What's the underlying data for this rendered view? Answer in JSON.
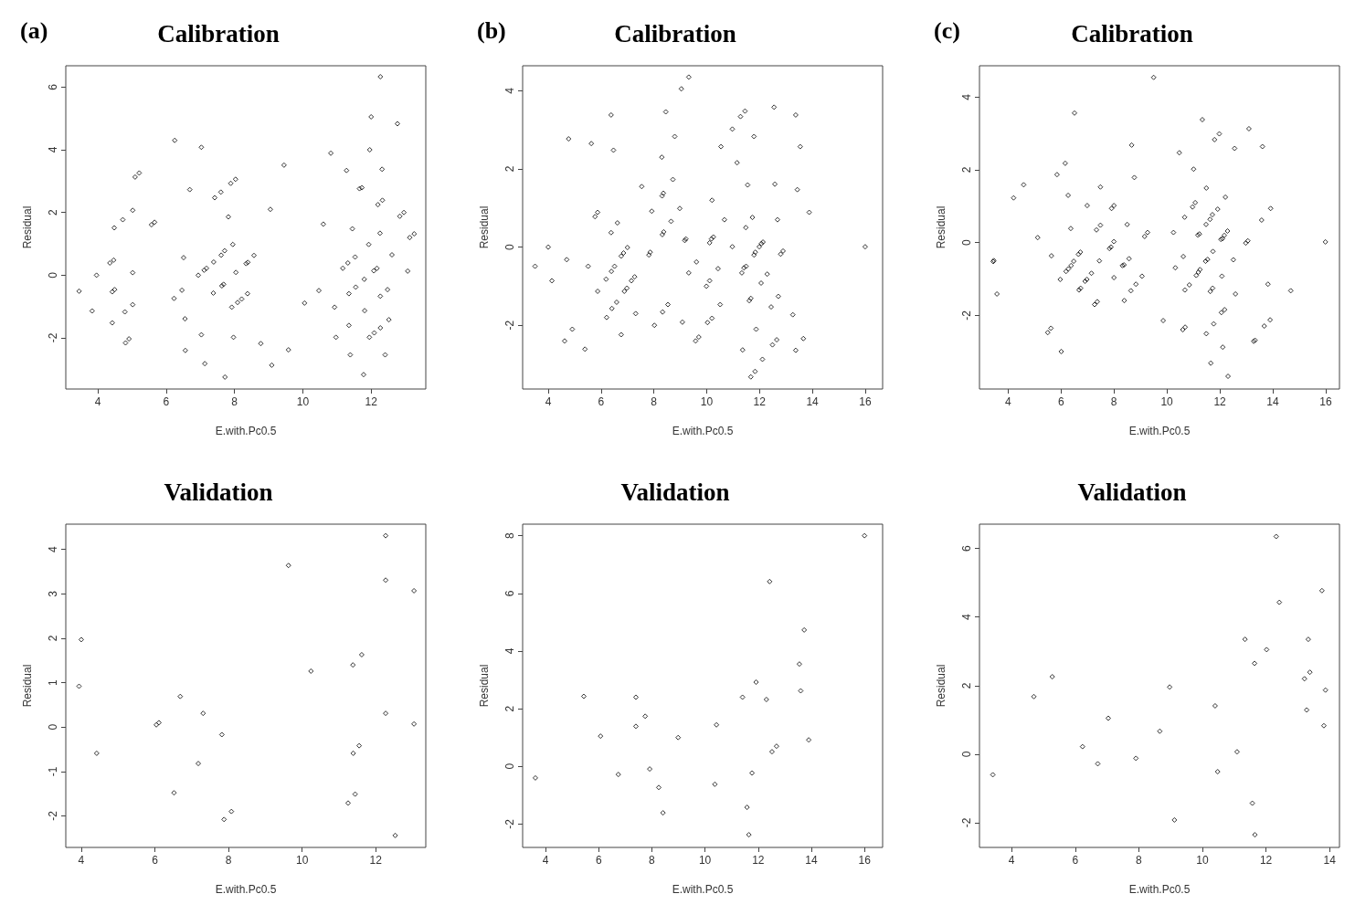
{
  "chart_data": [
    {
      "type": "scatter",
      "title": "Calibration",
      "annotations": [
        "(a)"
      ],
      "xlabel": "E.with.Pc0.5",
      "ylabel": "Residual",
      "marker": "diamond",
      "xlim": [
        3.06,
        13.6
      ],
      "ylim": [
        -3.63,
        6.68
      ],
      "xticks": [
        4,
        6,
        8,
        10,
        12
      ],
      "yticks": [
        -2,
        0,
        2,
        4,
        6
      ],
      "series": [
        {
          "color": "#000000",
          "x": [
            3.45,
            3.83,
            3.96,
            4.35,
            4.46,
            4.48,
            4.42,
            4.49,
            4.42,
            4.73,
            4.79,
            4.81,
            4.91,
            5.02,
            5.02,
            5.02,
            5.09,
            5.21,
            5.57,
            5.66,
            6.25,
            6.23,
            6.51,
            6.46,
            6.55,
            6.56,
            6.69,
            6.94,
            7.11,
            7.18,
            7.03,
            7.03,
            7.13,
            7.39,
            7.38,
            7.42,
            7.6,
            7.61,
            7.71,
            7.63,
            7.68,
            7.72,
            7.82,
            7.89,
            8.03,
            7.95,
            7.92,
            7.97,
            8.04,
            8.09,
            8.21,
            8.38,
            8.34,
            8.39,
            8.57,
            8.77,
            9.05,
            9.09,
            9.45,
            9.58,
            10.05,
            10.47,
            10.6,
            10.82,
            10.93,
            10.97,
            11.17,
            11.28,
            11.32,
            11.35,
            11.35,
            11.39,
            11.45,
            11.53,
            11.55,
            11.66,
            11.73,
            11.8,
            11.81,
            11.78,
            11.93,
            11.96,
            11.95,
            12.09,
            12.0,
            12.08,
            12.17,
            12.2,
            12.33,
            12.26,
            12.27,
            12.27,
            12.27,
            12.32,
            12.41,
            12.48,
            12.52,
            12.61,
            12.77,
            12.84,
            12.96,
            13.07,
            13.13,
            13.26
          ],
          "values": [
            -0.51,
            -1.14,
            0.0,
            0.39,
            0.48,
            1.51,
            -0.53,
            -0.46,
            -1.52,
            1.77,
            -1.17,
            -2.16,
            -2.03,
            2.07,
            0.08,
            -0.94,
            3.13,
            3.26,
            1.61,
            1.69,
            4.3,
            -0.74,
            0.56,
            -0.48,
            -1.39,
            -2.4,
            2.73,
            0.0,
            0.16,
            0.22,
            4.08,
            -1.9,
            -2.82,
            0.42,
            -0.57,
            2.47,
            2.65,
            0.64,
            0.78,
            -0.34,
            -0.29,
            -3.25,
            1.86,
            2.93,
            3.06,
            0.98,
            -1.02,
            -1.98,
            0.09,
            -0.87,
            -0.76,
            -0.59,
            0.37,
            0.41,
            0.63,
            -2.18,
            2.1,
            -2.87,
            3.51,
            -2.38,
            -0.89,
            -0.49,
            1.63,
            3.89,
            -1.02,
            -1.98,
            0.22,
            3.34,
            0.39,
            -0.59,
            -1.6,
            -2.54,
            1.48,
            0.58,
            -0.38,
            2.76,
            2.79,
            -0.13,
            -1.13,
            -3.17,
            0.98,
            4.0,
            -1.98,
            -1.84,
            5.05,
            0.14,
            0.22,
            2.25,
            2.39,
            1.34,
            6.33,
            -0.67,
            -1.68,
            3.38,
            -2.54,
            -0.46,
            -1.42,
            0.65,
            4.83,
            1.88,
            2.0,
            0.13,
            1.2,
            1.32
          ]
        }
      ]
    },
    {
      "type": "scatter",
      "title": "Calibration",
      "annotations": [
        "(b)"
      ],
      "xlabel": "E.with.Pc0.5",
      "ylabel": "Residual",
      "marker": "diamond",
      "xlim": [
        3.03,
        16.66
      ],
      "ylim": [
        -3.63,
        4.64
      ],
      "xticks": [
        4,
        6,
        8,
        10,
        12,
        14,
        16
      ],
      "yticks": [
        -2,
        0,
        2,
        4
      ],
      "series": [
        {
          "color": "#000000",
          "x": [
            3.5,
            4.0,
            4.14,
            4.62,
            4.7,
            4.77,
            4.91,
            5.39,
            5.51,
            5.63,
            5.77,
            5.87,
            5.87,
            6.19,
            6.21,
            6.38,
            6.38,
            6.39,
            6.41,
            6.47,
            6.51,
            6.59,
            6.62,
            6.76,
            6.85,
            6.76,
            6.88,
            6.98,
            7.0,
            7.15,
            7.27,
            7.31,
            7.54,
            7.81,
            7.86,
            7.92,
            8.02,
            8.3,
            8.31,
            8.36,
            8.32,
            8.37,
            8.33,
            8.45,
            8.53,
            8.65,
            8.72,
            8.79,
            8.98,
            9.04,
            9.08,
            9.17,
            9.21,
            9.32,
            9.32,
            9.58,
            9.7,
            9.61,
            9.99,
            10.03,
            10.11,
            10.11,
            10.2,
            10.2,
            10.18,
            10.25,
            10.43,
            10.51,
            10.54,
            10.67,
            10.97,
            10.97,
            11.15,
            11.28,
            11.45,
            11.33,
            11.41,
            11.49,
            11.36,
            11.48,
            11.55,
            11.61,
            11.67,
            11.67,
            11.83,
            11.73,
            11.79,
            11.79,
            11.84,
            11.87,
            11.99,
            12.07,
            12.13,
            12.06,
            12.11,
            12.29,
            12.44,
            12.49,
            12.55,
            12.58,
            12.65,
            12.68,
            12.71,
            12.8,
            12.89,
            13.26,
            13.37,
            13.37,
            13.43,
            13.54,
            13.66,
            13.88,
            16.0
          ],
          "values": [
            -0.49,
            0.0,
            -0.86,
            -2.4,
            -0.32,
            2.77,
            -2.1,
            -2.61,
            -0.49,
            2.65,
            0.78,
            0.89,
            -1.13,
            -0.82,
            -1.8,
            3.38,
            0.37,
            -0.62,
            -1.57,
            2.48,
            -0.49,
            -1.41,
            0.62,
            -0.23,
            -0.15,
            -2.24,
            -1.13,
            -1.05,
            -0.01,
            -0.86,
            -0.76,
            -1.7,
            1.55,
            -0.2,
            -0.13,
            0.92,
            -2.0,
            2.3,
            1.31,
            1.38,
            0.32,
            0.39,
            -1.66,
            3.46,
            -1.47,
            0.66,
            1.73,
            2.83,
            0.99,
            4.05,
            -1.92,
            0.17,
            0.21,
            4.35,
            -0.66,
            -2.4,
            -2.3,
            -0.38,
            -1.0,
            -1.93,
            -0.86,
            0.11,
            1.2,
            -1.82,
            0.21,
            0.26,
            -0.55,
            -1.47,
            2.57,
            0.7,
            0.01,
            3.02,
            2.16,
            3.34,
            3.48,
            -0.66,
            -0.53,
            -0.49,
            -2.63,
            0.5,
            1.59,
            -1.37,
            -1.31,
            -3.32,
            -3.18,
            0.76,
            2.83,
            -0.2,
            -0.13,
            -2.1,
            0.01,
            0.09,
            0.13,
            -0.92,
            -2.87,
            -0.69,
            -1.53,
            -2.5,
            3.58,
            1.61,
            -2.37,
            0.7,
            -1.26,
            -0.18,
            -0.1,
            -1.73,
            3.38,
            -2.64,
            1.47,
            2.57,
            -2.34,
            0.89,
            0.01
          ]
        }
      ]
    },
    {
      "type": "scatter",
      "title": "Calibration",
      "annotations": [
        "(c)"
      ],
      "xlabel": "E.with.Pc0.5",
      "ylabel": "Residual",
      "marker": "diamond",
      "xlim": [
        2.92,
        16.52
      ],
      "ylim": [
        -4.02,
        4.86
      ],
      "xticks": [
        4,
        6,
        8,
        10,
        12,
        14,
        16
      ],
      "yticks": [
        -2,
        0,
        2,
        4
      ],
      "series": [
        {
          "color": "#000000",
          "x": [
            3.44,
            3.46,
            3.58,
            4.21,
            4.59,
            5.12,
            5.5,
            5.62,
            5.64,
            5.85,
            5.97,
            6.01,
            6.16,
            6.27,
            6.19,
            6.28,
            6.38,
            6.48,
            6.37,
            6.51,
            6.68,
            6.74,
            6.66,
            6.73,
            6.91,
            6.98,
            6.99,
            7.15,
            7.27,
            7.37,
            7.34,
            7.45,
            7.49,
            7.49,
            7.83,
            7.89,
            7.91,
            8.0,
            8.0,
            8.0,
            8.32,
            8.38,
            8.39,
            8.5,
            8.57,
            8.64,
            8.67,
            8.77,
            8.83,
            9.06,
            9.16,
            9.27,
            9.5,
            9.86,
            10.25,
            10.32,
            10.47,
            10.62,
            10.6,
            10.69,
            10.67,
            10.68,
            10.85,
            10.97,
            11.07,
            11.01,
            11.11,
            11.19,
            11.25,
            11.17,
            11.23,
            11.34,
            11.46,
            11.54,
            11.48,
            11.49,
            11.49,
            11.63,
            11.72,
            11.66,
            11.64,
            11.73,
            11.74,
            11.77,
            11.8,
            11.98,
            11.92,
            12.04,
            12.1,
            12.08,
            12.06,
            12.18,
            12.11,
            12.17,
            12.29,
            12.21,
            12.31,
            12.51,
            12.56,
            12.59,
            12.98,
            13.06,
            13.1,
            13.28,
            13.33,
            13.58,
            13.61,
            13.68,
            13.82,
            13.9,
            13.92,
            14.68,
            15.99
          ],
          "values": [
            -0.52,
            -0.49,
            -1.41,
            1.23,
            1.59,
            0.14,
            -2.47,
            -2.35,
            -0.36,
            1.87,
            -1.01,
            -2.99,
            2.18,
            1.3,
            -0.79,
            -0.72,
            -0.63,
            -0.51,
            0.39,
            3.56,
            -1.3,
            -1.25,
            -0.32,
            -0.26,
            -1.06,
            -1.01,
            1.02,
            -0.84,
            -1.7,
            -1.62,
            0.35,
            -0.5,
            1.53,
            0.48,
            -0.16,
            -0.12,
            0.94,
            1.02,
            -0.96,
            0.03,
            -0.63,
            -0.61,
            -1.59,
            0.5,
            -0.44,
            -1.32,
            2.68,
            1.79,
            -1.14,
            -0.92,
            0.17,
            0.28,
            4.54,
            -2.14,
            0.28,
            -0.69,
            2.47,
            -0.38,
            -2.39,
            -2.32,
            0.7,
            -1.3,
            -1.16,
            0.98,
            1.1,
            2.02,
            -0.9,
            -0.81,
            -0.74,
            0.21,
            0.24,
            3.38,
            -0.51,
            -0.46,
            0.5,
            1.5,
            -2.5,
            0.64,
            0.77,
            -3.31,
            -1.34,
            -1.25,
            -0.24,
            -2.23,
            2.83,
            2.99,
            0.92,
            0.09,
            0.11,
            -0.92,
            -1.92,
            -1.84,
            -2.87,
            0.2,
            0.32,
            1.25,
            -3.67,
            -0.47,
            2.59,
            -1.41,
            -0.01,
            0.05,
            3.13,
            -2.71,
            -2.68,
            0.62,
            2.64,
            -2.29,
            -1.14,
            -2.12,
            0.94,
            -1.32,
            0.02
          ]
        }
      ]
    },
    {
      "type": "scatter",
      "title": "Validation",
      "xlabel": "E.with.Pc0.5",
      "ylabel": "Residual",
      "marker": "diamond",
      "xlim": [
        3.58,
        13.36
      ],
      "ylim": [
        -2.71,
        4.57
      ],
      "xticks": [
        4,
        6,
        8,
        10,
        12
      ],
      "yticks": [
        -2,
        -1,
        0,
        1,
        2,
        3,
        4
      ],
      "series": [
        {
          "color": "#000000",
          "x": [
            3.94,
            4.0,
            4.42,
            6.04,
            6.11,
            6.52,
            6.69,
            7.18,
            7.31,
            7.82,
            7.88,
            8.08,
            9.63,
            10.24,
            11.25,
            11.38,
            11.39,
            11.44,
            11.55,
            11.62,
            12.27,
            12.27,
            12.27,
            12.53,
            13.04,
            13.04
          ],
          "values": [
            0.92,
            1.97,
            -0.59,
            0.05,
            0.1,
            -1.48,
            0.69,
            -0.82,
            0.31,
            -0.17,
            -2.08,
            -1.9,
            3.64,
            1.26,
            -1.71,
            1.4,
            -0.59,
            -1.51,
            -0.42,
            1.63,
            4.31,
            3.31,
            0.31,
            -2.44,
            3.07,
            0.07
          ]
        }
      ]
    },
    {
      "type": "scatter",
      "title": "Validation",
      "xlabel": "E.with.Pc0.5",
      "ylabel": "Residual",
      "marker": "diamond",
      "xlim": [
        3.14,
        16.68
      ],
      "ylim": [
        -2.81,
        8.4
      ],
      "xticks": [
        4,
        6,
        8,
        10,
        12,
        14,
        16
      ],
      "yticks": [
        -2,
        0,
        2,
        4,
        6,
        8
      ],
      "series": [
        {
          "color": "#000000",
          "x": [
            3.62,
            5.44,
            6.07,
            6.74,
            7.4,
            7.4,
            7.75,
            7.92,
            8.26,
            8.42,
            8.99,
            10.37,
            10.43,
            11.41,
            11.58,
            11.65,
            11.77,
            11.92,
            12.31,
            12.43,
            12.52,
            12.69,
            13.55,
            13.6,
            13.73,
            13.9,
            16.0
          ],
          "values": [
            -0.4,
            2.43,
            1.05,
            -0.28,
            2.4,
            1.39,
            1.74,
            -0.09,
            -0.73,
            -1.61,
            1.0,
            -0.62,
            1.44,
            2.4,
            -1.42,
            -2.37,
            -0.23,
            2.92,
            2.32,
            6.41,
            0.51,
            0.7,
            3.55,
            2.62,
            4.73,
            0.92,
            8.0
          ]
        }
      ]
    },
    {
      "type": "scatter",
      "title": "Validation",
      "xlabel": "E.with.Pc0.5",
      "ylabel": "Residual",
      "marker": "diamond",
      "xlim": [
        2.99,
        14.31
      ],
      "ylim": [
        -2.72,
        6.71
      ],
      "xticks": [
        4,
        6,
        8,
        10,
        12,
        14
      ],
      "yticks": [
        -2,
        0,
        2,
        4,
        6
      ],
      "series": [
        {
          "color": "#000000",
          "x": [
            3.41,
            4.7,
            5.28,
            6.23,
            6.71,
            7.04,
            7.91,
            8.66,
            8.97,
            9.12,
            10.4,
            10.48,
            11.09,
            11.34,
            11.57,
            11.64,
            11.65,
            12.02,
            12.32,
            12.42,
            13.21,
            13.28,
            13.33,
            13.38,
            13.76,
            13.82,
            13.87
          ],
          "values": [
            -0.6,
            1.68,
            2.26,
            0.22,
            -0.28,
            1.05,
            -0.12,
            0.67,
            1.96,
            -1.92,
            1.41,
            -0.51,
            0.07,
            3.35,
            -1.43,
            2.65,
            -2.35,
            3.05,
            6.35,
            4.43,
            2.2,
            1.29,
            3.35,
            2.39,
            4.77,
            0.83,
            1.87
          ]
        }
      ]
    }
  ]
}
